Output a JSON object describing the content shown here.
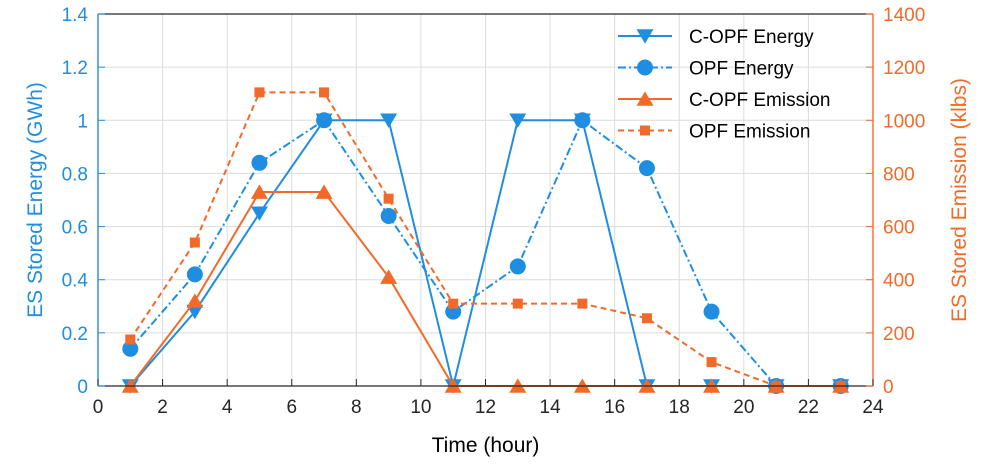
{
  "chart_data": {
    "type": "line",
    "xlabel": "Time (hour)",
    "ylabel_left": "ES Stored Energy (GWh)",
    "ylabel_right": "ES Stored Emission (klbs)",
    "xlim": [
      0,
      24
    ],
    "ylim_left": [
      0,
      1.4
    ],
    "ylim_right": [
      0,
      1400
    ],
    "xticks": [
      0,
      2,
      4,
      6,
      8,
      10,
      12,
      14,
      16,
      18,
      20,
      22,
      24
    ],
    "yticks_left": [
      "0",
      "0.2",
      "0.4",
      "0.6",
      "0.8",
      "1",
      "1.2",
      "1.4"
    ],
    "yticks_left_values": [
      0,
      0.2,
      0.4,
      0.6,
      0.8,
      1,
      1.2,
      1.4
    ],
    "yticks_right": [
      "0",
      "200",
      "400",
      "600",
      "800",
      "1000",
      "1200",
      "1400"
    ],
    "yticks_right_values": [
      0,
      200,
      400,
      600,
      800,
      1000,
      1200,
      1400
    ],
    "grid": true,
    "legend_position": "top-right",
    "x": [
      1,
      3,
      5,
      7,
      9,
      11,
      13,
      15,
      17,
      19,
      21,
      23
    ],
    "series": [
      {
        "name": "C-OPF Energy",
        "axis": "left",
        "color": "#1f8ee0",
        "dash": "solid",
        "marker": "triangle-down",
        "values": [
          0,
          0.28,
          0.65,
          1.0,
          1.0,
          0,
          1.0,
          1.0,
          0,
          0,
          0,
          0
        ]
      },
      {
        "name": "OPF Energy",
        "axis": "left",
        "color": "#1f8ee0",
        "dash": "dashdot",
        "marker": "circle",
        "values": [
          0.14,
          0.42,
          0.84,
          1.0,
          0.64,
          0.28,
          0.45,
          1.0,
          0.82,
          0.28,
          0,
          0
        ]
      },
      {
        "name": "C-OPF Emission",
        "axis": "right",
        "color": "#f26a2a",
        "dash": "solid",
        "marker": "triangle-up",
        "values": [
          0,
          320,
          730,
          730,
          410,
          0,
          0,
          0,
          0,
          0,
          0,
          0
        ]
      },
      {
        "name": "OPF Emission",
        "axis": "right",
        "color": "#f26a2a",
        "dash": "dashed",
        "marker": "square",
        "values": [
          175,
          540,
          1105,
          1105,
          705,
          310,
          310,
          310,
          255,
          90,
          0,
          0
        ]
      }
    ],
    "colors": {
      "left_axis": "#1f8ee0",
      "right_axis": "#f26a2a",
      "grid": "#dcdcdc"
    }
  }
}
